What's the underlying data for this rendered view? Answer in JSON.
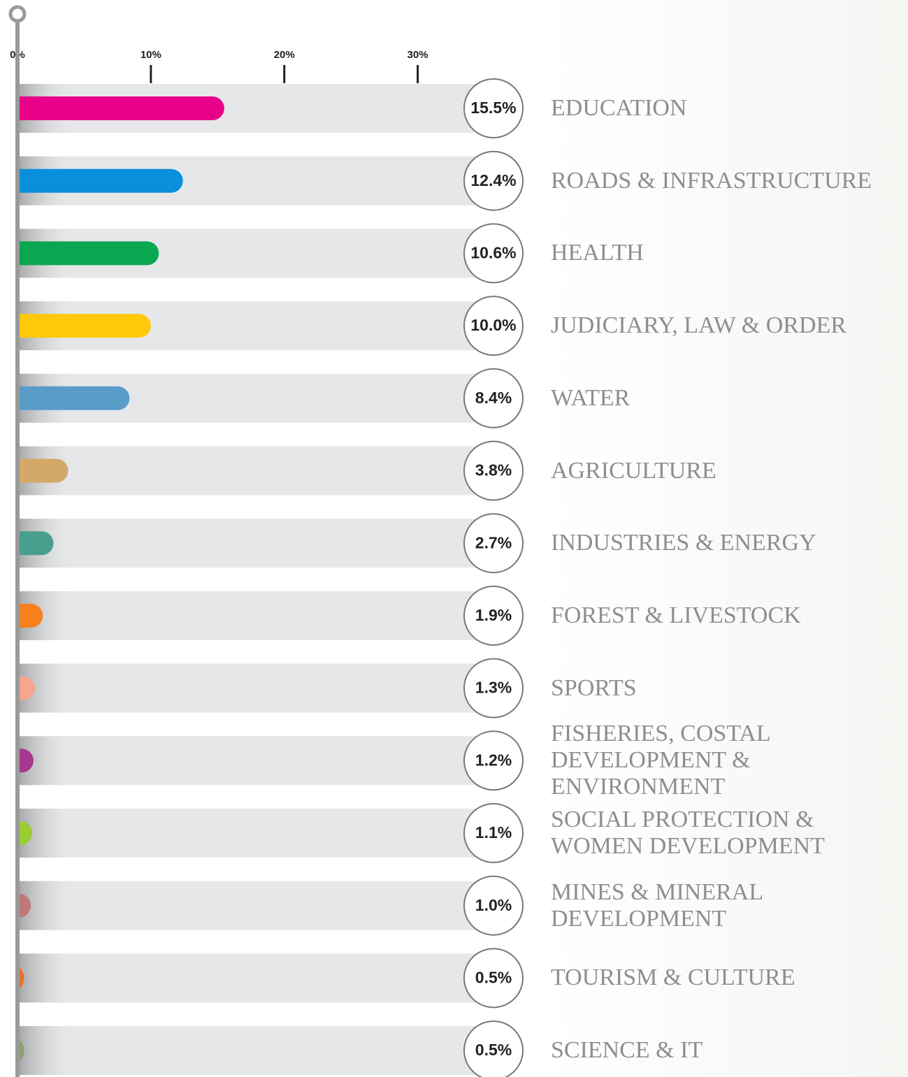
{
  "chart_data": {
    "type": "bar",
    "orientation": "horizontal",
    "categories": [
      "EDUCATION",
      "ROADS & INFRASTRUCTURE",
      "HEALTH",
      "JUDICIARY, LAW & ORDER",
      "WATER",
      "AGRICULTURE",
      "INDUSTRIES & ENERGY",
      "FOREST & LIVESTOCK",
      "SPORTS",
      "FISHERIES, COSTAL DEVELOPMENT & ENVIRONMENT",
      "SOCIAL PROTECTION & WOMEN DEVELOPMENT",
      "MINES & MINERAL DEVELOPMENT",
      "TOURISM & CULTURE",
      "SCIENCE & IT"
    ],
    "values": [
      15.5,
      12.4,
      10.6,
      10.0,
      8.4,
      3.8,
      2.7,
      1.9,
      1.3,
      1.2,
      1.1,
      1.0,
      0.5,
      0.5
    ],
    "value_labels": [
      "15.5%",
      "12.4%",
      "10.6%",
      "10.0%",
      "8.4%",
      "3.8%",
      "2.7%",
      "1.9%",
      "1.3%",
      "1.2%",
      "1.1%",
      "1.0%",
      "0.5%",
      "0.5%"
    ],
    "colors": [
      "#e8008a",
      "#0a8fdc",
      "#0aa650",
      "#ffc90a",
      "#5a9cc8",
      "#d3a868",
      "#4a9e8e",
      "#f77f1e",
      "#f7a58e",
      "#a8388e",
      "#9acd32",
      "#c07878",
      "#e8722a",
      "#8aa070"
    ],
    "xlim": [
      0,
      35
    ],
    "xticks": [
      {
        "value": 0,
        "label": "0%"
      },
      {
        "value": 10,
        "label": "10%"
      },
      {
        "value": 20,
        "label": "20%"
      },
      {
        "value": 30,
        "label": "30%"
      }
    ]
  }
}
